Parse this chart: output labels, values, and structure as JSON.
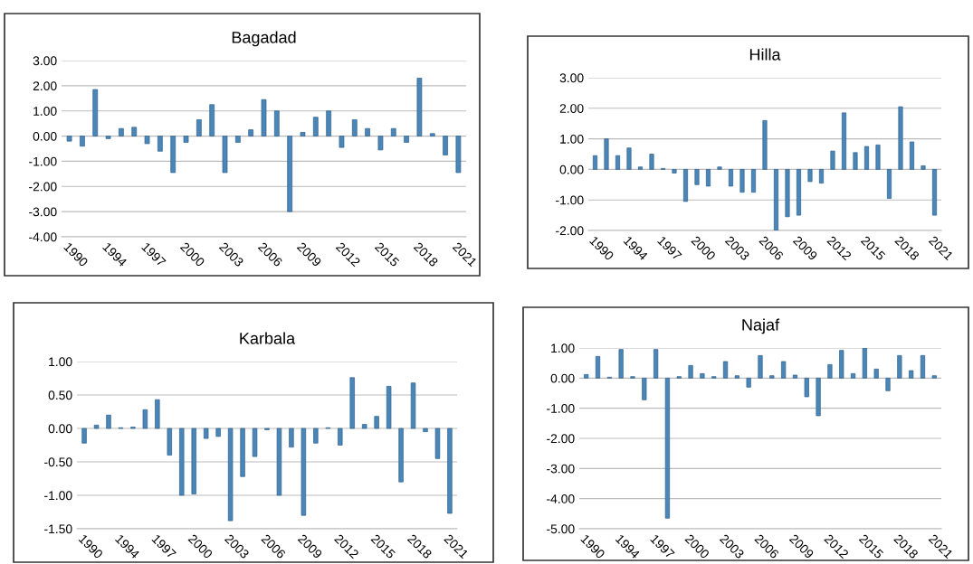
{
  "chart_data": [
    {
      "type": "bar",
      "title": "Bagadad",
      "color": "#4a86b8",
      "categories": [
        "1990",
        null,
        null,
        "1994",
        null,
        null,
        "1997",
        null,
        null,
        "2000",
        null,
        null,
        "2003",
        null,
        null,
        "2006",
        null,
        null,
        "2009",
        null,
        null,
        "2012",
        null,
        null,
        "2015",
        null,
        null,
        "2018",
        null,
        null,
        "2021"
      ],
      "values": [
        -0.2,
        -0.4,
        1.85,
        -0.1,
        0.3,
        0.35,
        -0.3,
        -0.6,
        -1.45,
        -0.25,
        0.65,
        1.25,
        -1.45,
        -0.25,
        0.25,
        1.45,
        1.0,
        -3.0,
        0.15,
        0.75,
        1.0,
        -0.45,
        0.65,
        0.3,
        -0.55,
        0.3,
        -0.25,
        2.3,
        0.1,
        -0.75,
        -1.45
      ],
      "ylim": [
        -4,
        3
      ],
      "yticks": [
        {
          "value": 3,
          "label": "3.00"
        },
        {
          "value": 2,
          "label": "2.00"
        },
        {
          "value": 1,
          "label": "1.00"
        },
        {
          "value": 0,
          "label": "0.00"
        },
        {
          "value": -1,
          "label": "-1.00"
        },
        {
          "value": -2,
          "label": "-2.00"
        },
        {
          "value": -3,
          "label": "-3.00"
        },
        {
          "value": -4,
          "label": "-4.00"
        }
      ],
      "grid": "y"
    },
    {
      "type": "bar",
      "title": "Hilla",
      "color": "#4a86b8",
      "categories": [
        "1990",
        null,
        null,
        "1994",
        null,
        null,
        "1997",
        null,
        null,
        "2000",
        null,
        null,
        "2003",
        null,
        null,
        "2006",
        null,
        null,
        "2009",
        null,
        null,
        "2012",
        null,
        null,
        "2015",
        null,
        null,
        "2018",
        null,
        null,
        "2021"
      ],
      "values": [
        0.45,
        1.0,
        0.45,
        0.7,
        0.08,
        0.5,
        0.03,
        -0.12,
        -1.05,
        -0.5,
        -0.55,
        0.08,
        -0.55,
        -0.75,
        -0.75,
        1.6,
        -2.0,
        -1.55,
        -1.5,
        -0.4,
        -0.45,
        0.6,
        1.85,
        0.55,
        0.75,
        0.8,
        -0.95,
        2.05,
        0.9,
        0.12,
        -1.5
      ],
      "ylim": [
        -2,
        3
      ],
      "yticks": [
        {
          "value": 3,
          "label": "3.00"
        },
        {
          "value": 2,
          "label": "2.00"
        },
        {
          "value": 1,
          "label": "1.00"
        },
        {
          "value": 0,
          "label": "0.00"
        },
        {
          "value": -1,
          "label": "-1.00"
        },
        {
          "value": -2,
          "label": "-2.00"
        }
      ],
      "grid": "y"
    },
    {
      "type": "bar",
      "title": "Karbala",
      "color": "#4a86b8",
      "categories": [
        "1990",
        null,
        null,
        "1994",
        null,
        null,
        "1997",
        null,
        null,
        "2000",
        null,
        null,
        "2003",
        null,
        null,
        "2006",
        null,
        null,
        "2009",
        null,
        null,
        "2012",
        null,
        null,
        "2015",
        null,
        null,
        "2018",
        null,
        null,
        "2021"
      ],
      "values": [
        -0.22,
        0.05,
        0.2,
        0.01,
        0.02,
        0.28,
        0.43,
        -0.4,
        -1.0,
        -0.98,
        -0.15,
        -0.12,
        -1.38,
        -0.72,
        -0.42,
        -0.02,
        -1.0,
        -0.28,
        -1.3,
        -0.22,
        0.01,
        -0.25,
        0.76,
        0.06,
        0.18,
        0.63,
        -0.8,
        0.68,
        -0.05,
        -0.45,
        -1.27
      ],
      "ylim": [
        -1.5,
        1.0
      ],
      "yticks": [
        {
          "value": 1.0,
          "label": "1.00"
        },
        {
          "value": 0.5,
          "label": "0.50"
        },
        {
          "value": 0,
          "label": "0.00"
        },
        {
          "value": -0.5,
          "label": "-0.50"
        },
        {
          "value": -1.0,
          "label": "-1.00"
        },
        {
          "value": -1.5,
          "label": "-1.50"
        }
      ],
      "grid": "y"
    },
    {
      "type": "bar",
      "title": "Najaf",
      "color": "#4a86b8",
      "categories": [
        "1990",
        null,
        null,
        "1994",
        null,
        null,
        "1997",
        null,
        null,
        "2000",
        null,
        null,
        "2003",
        null,
        null,
        "2006",
        null,
        null,
        "2009",
        null,
        null,
        "2012",
        null,
        null,
        "2015",
        null,
        null,
        "2018",
        null,
        null,
        "2021"
      ],
      "values": [
        0.12,
        0.72,
        0.03,
        0.95,
        0.05,
        -0.72,
        0.95,
        -4.65,
        0.05,
        0.42,
        0.15,
        0.05,
        0.55,
        0.08,
        -0.3,
        0.75,
        0.08,
        0.55,
        0.1,
        -0.62,
        -1.25,
        0.45,
        0.92,
        0.15,
        1.0,
        0.3,
        -0.42,
        0.75,
        0.25,
        0.75,
        0.08
      ],
      "ylim": [
        -5,
        1
      ],
      "yticks": [
        {
          "value": 1,
          "label": "1.00"
        },
        {
          "value": 0,
          "label": "0.00"
        },
        {
          "value": -1,
          "label": "-1.00"
        },
        {
          "value": -2,
          "label": "-2.00"
        },
        {
          "value": -3,
          "label": "-3.00"
        },
        {
          "value": -4,
          "label": "-4.00"
        },
        {
          "value": -5,
          "label": "-5.00"
        }
      ],
      "grid": "y"
    }
  ]
}
